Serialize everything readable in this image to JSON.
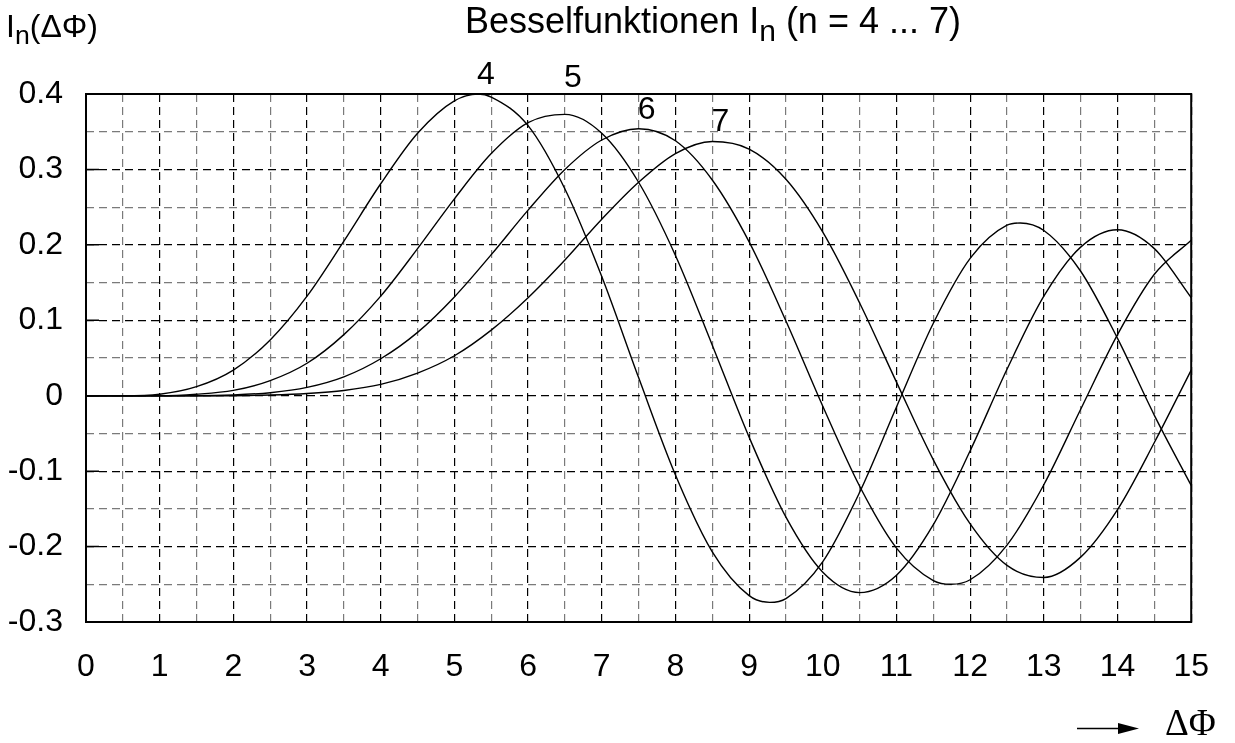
{
  "chart_data": {
    "type": "line",
    "title": "Besselfunktionen I$_{n}$ (n = 4 ... 7)",
    "ylabel": "I$_{n}$(ΔΦ)",
    "xlabel": "ΔΦ",
    "x": [
      0,
      0.5,
      1,
      1.5,
      2,
      2.5,
      3,
      3.5,
      4,
      4.5,
      5,
      5.5,
      6,
      6.5,
      7,
      7.5,
      8,
      8.5,
      9,
      9.5,
      10,
      10.5,
      11,
      11.5,
      12,
      12.5,
      13,
      13.5,
      14,
      14.5,
      15
    ],
    "xlim": [
      0,
      15
    ],
    "ylim": [
      -0.3,
      0.4
    ],
    "xticks": [
      0,
      {
        "value": 0.5,
        "label": null
      },
      1,
      {
        "value": 1.5,
        "label": null
      },
      2,
      {
        "value": 2.5,
        "label": null
      },
      3,
      {
        "value": 3.5,
        "label": null
      },
      4,
      {
        "value": 4.5,
        "label": null
      },
      5,
      {
        "value": 5.5,
        "label": null
      },
      6,
      {
        "value": 6.5,
        "label": null
      },
      7,
      {
        "value": 7.5,
        "label": null
      },
      8,
      {
        "value": 8.5,
        "label": null
      },
      9,
      {
        "value": 9.5,
        "label": null
      },
      10,
      {
        "value": 10.5,
        "label": null
      },
      11,
      {
        "value": 11.5,
        "label": null
      },
      12,
      {
        "value": 12.5,
        "label": null
      },
      13,
      {
        "value": 13.5,
        "label": null
      },
      14,
      {
        "value": 14.5,
        "label": null
      },
      15
    ],
    "yticks": [
      -0.3,
      {
        "value": -0.25,
        "label": null
      },
      -0.2,
      {
        "value": -0.15,
        "label": null
      },
      -0.1,
      {
        "value": -0.05,
        "label": null
      },
      0,
      {
        "value": 0.05,
        "label": null
      },
      0.1,
      {
        "value": 0.15,
        "label": null
      },
      0.2,
      {
        "value": 0.25,
        "label": null
      },
      0.3,
      {
        "value": 0.35,
        "label": null
      },
      0.4
    ],
    "grid": true,
    "series": [
      {
        "name": "4",
        "color": "#000000",
        "x": [
          0,
          0.5,
          1,
          1.5,
          2,
          2.5,
          3,
          3.5,
          4,
          4.5,
          5,
          5.32,
          5.5,
          6,
          6.5,
          7,
          7.5,
          8,
          8.5,
          9,
          9.28,
          9.5,
          10,
          10.5,
          11,
          11.5,
          12,
          12.5,
          12.68,
          13,
          13.5,
          14,
          14.5,
          15
        ],
        "values": [
          0,
          0,
          0.002,
          0.012,
          0.034,
          0.074,
          0.132,
          0.205,
          0.281,
          0.348,
          0.391,
          0.4,
          0.396,
          0.358,
          0.274,
          0.158,
          0.024,
          -0.105,
          -0.207,
          -0.265,
          -0.274,
          -0.269,
          -0.22,
          -0.128,
          -0.015,
          0.096,
          0.182,
          0.226,
          0.229,
          0.219,
          0.165,
          0.076,
          -0.026,
          -0.119
        ]
      },
      {
        "name": "5",
        "color": "#000000",
        "values": [
          0,
          0,
          0,
          0.002,
          0.007,
          0.02,
          0.043,
          0.081,
          0.132,
          0.195,
          0.261,
          0.321,
          0.362,
          0.373,
          0.348,
          0.283,
          0.186,
          0.067,
          -0.055,
          -0.161,
          -0.234,
          -0.261,
          -0.238,
          -0.171,
          -0.073,
          0.035,
          0.132,
          0.197,
          0.22,
          0.195,
          0.13
        ]
      },
      {
        "name": "6",
        "color": "#000000",
        "x": [
          0,
          0.5,
          1,
          1.5,
          2,
          2.5,
          3,
          3.5,
          4,
          4.5,
          5,
          5.5,
          6,
          6.5,
          7,
          7.5,
          8,
          8.5,
          9,
          9.5,
          10,
          10.5,
          11,
          11.5,
          11.74,
          12,
          12.5,
          13,
          13.5,
          14,
          14.5,
          15
        ],
        "values": [
          0,
          0,
          0,
          0,
          0.001,
          0.004,
          0.011,
          0.025,
          0.049,
          0.084,
          0.131,
          0.187,
          0.246,
          0.3,
          0.339,
          0.354,
          0.338,
          0.286,
          0.204,
          0.099,
          -0.014,
          -0.12,
          -0.202,
          -0.245,
          -0.25,
          -0.244,
          -0.198,
          -0.118,
          -0.018,
          0.081,
          0.161,
          0.206
        ]
      },
      {
        "name": "7",
        "color": "#000000",
        "values": [
          0,
          0,
          0,
          0,
          0,
          0.001,
          0.003,
          0.007,
          0.015,
          0.03,
          0.053,
          0.087,
          0.13,
          0.18,
          0.234,
          0.283,
          0.321,
          0.337,
          0.327,
          0.287,
          0.217,
          0.123,
          0.018,
          -0.085,
          -0.17,
          -0.225,
          -0.241,
          -0.214,
          -0.151,
          -0.062,
          0.034
        ]
      }
    ]
  }
}
